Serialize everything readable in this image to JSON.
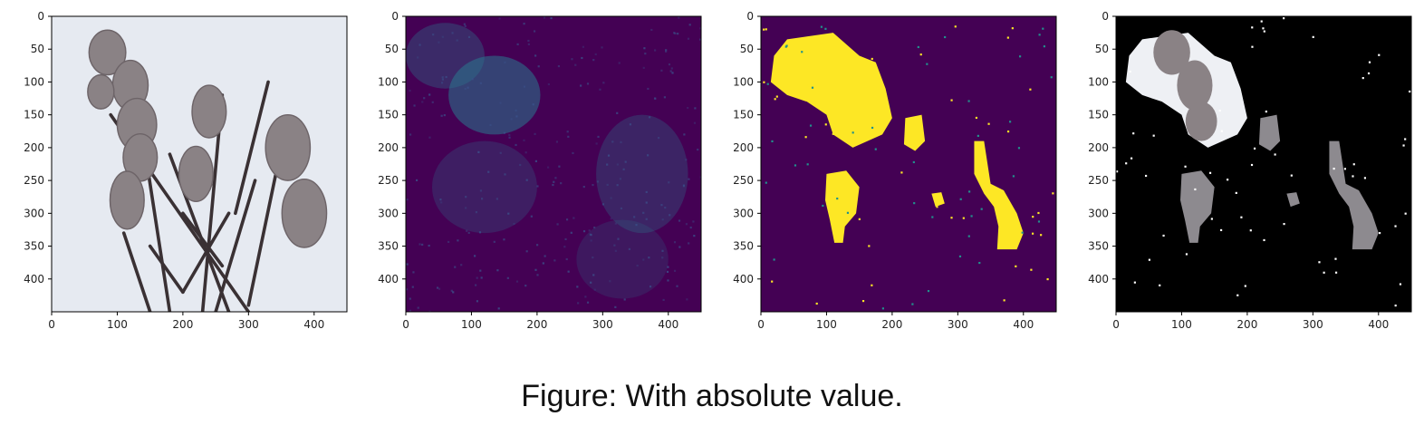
{
  "panels": [
    {
      "name": "input-image",
      "x_ticks": [
        "0",
        "100",
        "200",
        "300",
        "400"
      ],
      "y_ticks": [
        "0",
        "50",
        "100",
        "150",
        "200",
        "250",
        "300",
        "350",
        "400"
      ]
    },
    {
      "name": "saliency-map",
      "x_ticks": [
        "0",
        "100",
        "200",
        "300",
        "400"
      ],
      "y_ticks": [
        "0",
        "50",
        "100",
        "150",
        "200",
        "250",
        "300",
        "350",
        "400"
      ]
    },
    {
      "name": "threshold-mask",
      "x_ticks": [
        "0",
        "100",
        "200",
        "300",
        "400"
      ],
      "y_ticks": [
        "0",
        "50",
        "100",
        "150",
        "200",
        "250",
        "300",
        "350",
        "400"
      ]
    },
    {
      "name": "masked-image",
      "x_ticks": [
        "0",
        "100",
        "200",
        "300",
        "400"
      ],
      "y_ticks": [
        "0",
        "50",
        "100",
        "150",
        "200",
        "250",
        "300",
        "350",
        "400"
      ]
    }
  ],
  "colors": {
    "sky": "#e6eaf1",
    "bird": "#8a8285",
    "branch": "#3a3134",
    "viridis_dark": "#440154",
    "viridis_mid": "#2a788e",
    "viridis_bright": "#fde725",
    "black": "#000000"
  },
  "caption": "Figure: With absolute value."
}
